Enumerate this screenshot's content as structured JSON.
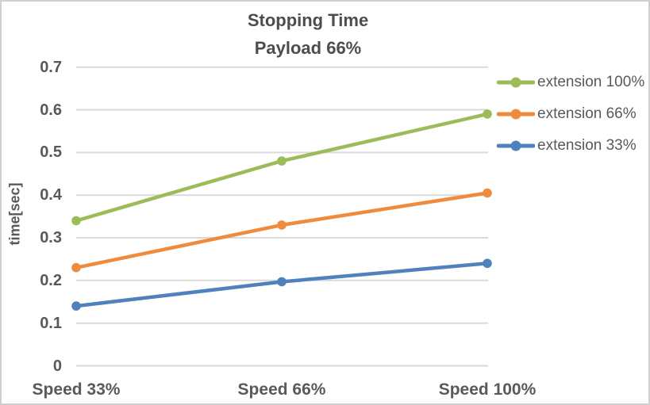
{
  "chart_data": {
    "type": "line",
    "title_lines": [
      "Stopping Time",
      "Payload 66%"
    ],
    "title": "Stopping Time Payload 66%",
    "ylabel": "time[sec]",
    "xlabel": "",
    "categories": [
      "Speed 33%",
      "Speed 66%",
      "Speed 100%"
    ],
    "series": [
      {
        "name": "extension 100%",
        "color": "#9CBC59",
        "values": [
          0.34,
          0.48,
          0.59
        ]
      },
      {
        "name": "extension 66%",
        "color": "#F08A3C",
        "values": [
          0.23,
          0.33,
          0.405
        ]
      },
      {
        "name": "extension 33%",
        "color": "#4F81BD",
        "values": [
          0.14,
          0.197,
          0.24
        ]
      }
    ],
    "ylim": [
      0,
      0.7
    ],
    "yticks": [
      0,
      0.1,
      0.2,
      0.3,
      0.4,
      0.5,
      0.6,
      0.7
    ],
    "ytick_labels": [
      "0",
      "0.1",
      "0.2",
      "0.3",
      "0.4",
      "0.5",
      "0.6",
      "0.7"
    ],
    "grid": true,
    "legend_position": "right",
    "marker": "circle"
  },
  "colors": {
    "background": "#FFFFFF",
    "frame_border": "#D0D0D0",
    "title_text": "#4D4D4D",
    "axis_text": "#595959",
    "gridline": "#DADADA"
  }
}
